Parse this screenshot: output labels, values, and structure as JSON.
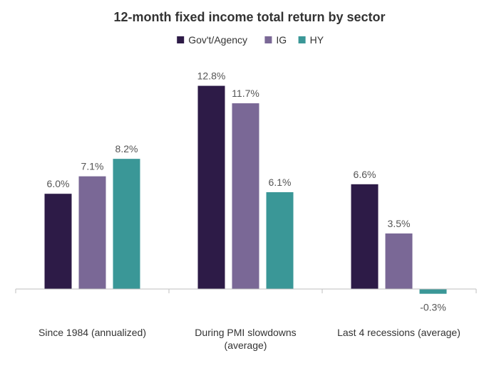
{
  "chart_data": {
    "type": "bar",
    "title": "12-month fixed income total return by sector",
    "categories": [
      [
        "Since 1984 (annualized)"
      ],
      [
        "During PMI slowdowns",
        "(average)"
      ],
      [
        "Last 4 recessions (average)"
      ]
    ],
    "series": [
      {
        "name": "Gov't/Agency",
        "color": "#2d1b47",
        "values": [
          6.0,
          12.8,
          6.6
        ],
        "labels": [
          "6.0%",
          "12.8%",
          "6.6%"
        ]
      },
      {
        "name": "IG",
        "color": "#7a6896",
        "values": [
          7.1,
          11.7,
          3.5
        ],
        "labels": [
          "7.1%",
          "11.7%",
          "3.5%"
        ]
      },
      {
        "name": "HY",
        "color": "#3a9797",
        "values": [
          8.2,
          6.1,
          -0.3
        ],
        "labels": [
          "8.2%",
          "6.1%",
          "-0.3%"
        ]
      }
    ],
    "legend_position": "top-center",
    "grid": false,
    "ylim": [
      -0.3,
      12.8
    ]
  }
}
